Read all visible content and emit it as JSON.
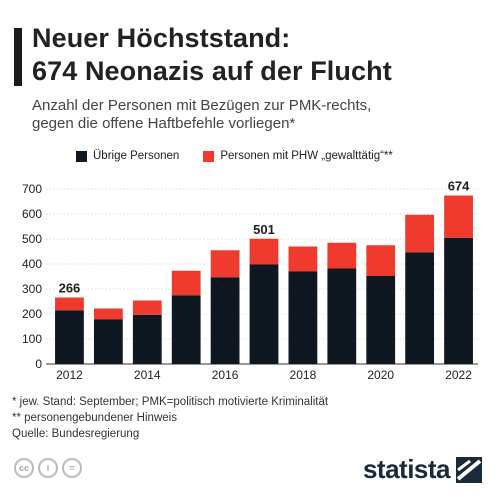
{
  "title_line1": "Neuer Höchststand:",
  "title_line2": "674 Neonazis auf der Flucht",
  "subtitle_line1": "Anzahl der Personen mit Bezügen zur PMK-rechts,",
  "subtitle_line2": "gegen die offene Haftbefehle vorliegen*",
  "legend": [
    {
      "label": "Übrige Personen",
      "color": "#0f1721"
    },
    {
      "label": "Personen mit PHW „gewalttätig“**",
      "color": "#ee3b2d"
    }
  ],
  "chart_data": {
    "type": "bar",
    "stacked": true,
    "categories": [
      "2012",
      "2013",
      "2014",
      "2015",
      "2016",
      "2017",
      "2018",
      "2019",
      "2020",
      "2021",
      "2022"
    ],
    "series": [
      {
        "name": "Übrige Personen",
        "values": [
          215,
          178,
          197,
          275,
          347,
          398,
          370,
          382,
          352,
          447,
          505
        ],
        "color": "#0f1721"
      },
      {
        "name": "Personen mit PHW „gewalttätig“**",
        "values": [
          51,
          44,
          57,
          98,
          108,
          103,
          100,
          103,
          123,
          150,
          169
        ],
        "color": "#ee3b2d"
      }
    ],
    "totals_labels": [
      {
        "index": 0,
        "text": "266"
      },
      {
        "index": 5,
        "text": "501"
      },
      {
        "index": 10,
        "text": "674"
      }
    ],
    "x_tick_labels": [
      "2012",
      "",
      "2014",
      "",
      "2016",
      "",
      "2018",
      "",
      "2020",
      "",
      "2022"
    ],
    "yticks": [
      0,
      100,
      200,
      300,
      400,
      500,
      600,
      700
    ],
    "ylim": [
      0,
      700
    ],
    "grid": true,
    "legend_position": "top"
  },
  "notes": [
    "*   jew. Stand: September; PMK=politisch motivierte Kriminalität",
    "** personengebundener Hinweis",
    "Quelle: Bundesregierung"
  ],
  "license_icons": [
    "creative-commons-icon",
    "attribution-icon",
    "no-derivatives-icon"
  ],
  "license_texts": [
    "cc",
    "i",
    "="
  ],
  "brand": "statista"
}
